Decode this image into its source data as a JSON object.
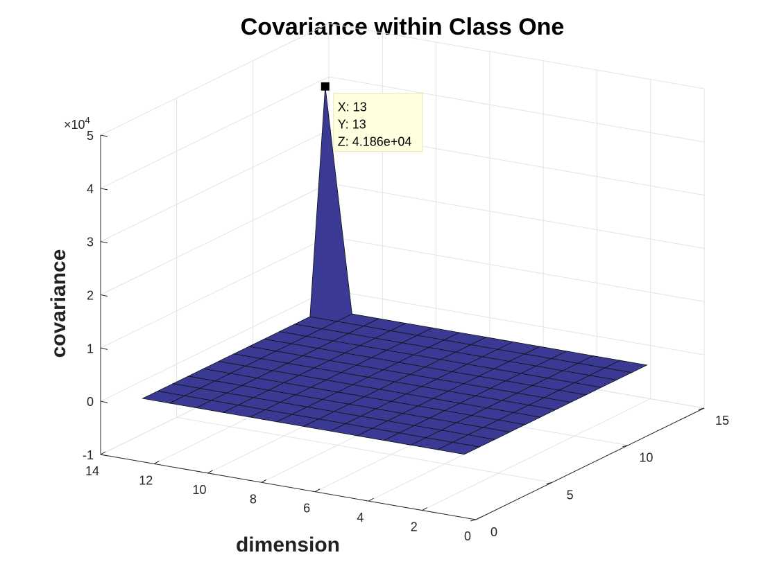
{
  "chart_data": {
    "type": "surface",
    "title": "Covariance within Class One",
    "xlabel": "dimension",
    "ylabel": "",
    "zlabel": "covariance",
    "x_ticks": [
      0,
      2,
      4,
      6,
      8,
      10,
      12,
      14
    ],
    "y_ticks": [
      0,
      5,
      10,
      15
    ],
    "z_ticks": [
      -1,
      0,
      1,
      2,
      3,
      4,
      5
    ],
    "z_exponent_label": "×10",
    "z_exponent_power": "4",
    "xlim": [
      0,
      14
    ],
    "ylim": [
      0,
      15
    ],
    "zlim": [
      -1,
      5
    ],
    "grid": true,
    "surface_color": "#3a3a94",
    "grid_size": [
      13,
      13
    ],
    "baseline_z": 0,
    "peak": {
      "x": 13,
      "y": 13,
      "z": 41860
    },
    "datatip": {
      "x_text": "X: 13",
      "y_text": "Y: 13",
      "z_text": "Z: 4.186e+04"
    }
  }
}
